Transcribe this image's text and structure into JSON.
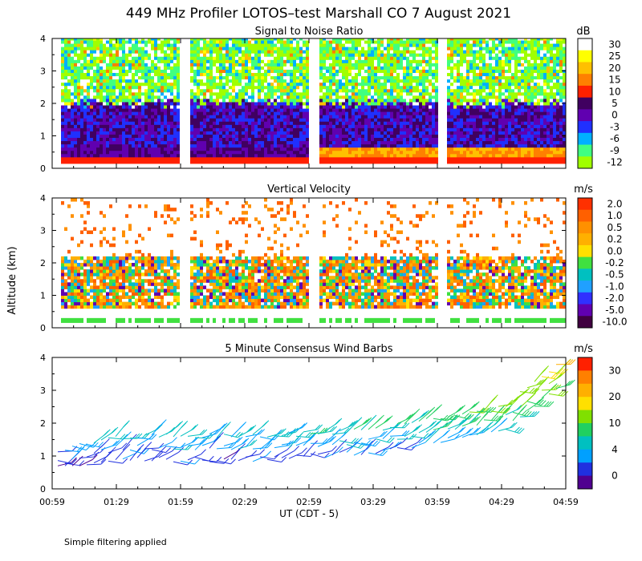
{
  "title": "449 MHz Profiler LOTOS–test Marshall CO  7 August 2021",
  "ylabel": "Altitude (km)",
  "xlabel": "UT  (CDT - 5)",
  "footnote": "Simple filtering applied",
  "x_ticks": [
    "00:59",
    "01:29",
    "01:59",
    "02:29",
    "02:59",
    "03:29",
    "03:59",
    "04:29",
    "04:59"
  ],
  "y_ticks": [
    "0",
    "1",
    "2",
    "3",
    "4"
  ],
  "chart_data": [
    {
      "type": "heatmap",
      "title": "Signal to Noise Ratio",
      "colorbar_unit": "dB",
      "colorbar_labels": [
        "30",
        "25",
        "20",
        "15",
        "10",
        "5",
        "0",
        "-3",
        "-6",
        "-9",
        "-12"
      ],
      "colorbar_colors": [
        "#ffffff",
        "#ffff00",
        "#ffc000",
        "#ff8000",
        "#ff2000",
        "#400060",
        "#6000b0",
        "#2030ff",
        "#00b0ff",
        "#40ff80",
        "#a0ff00"
      ],
      "ylim": [
        0,
        4
      ],
      "data_gaps_ut": [
        "02:05-02:10",
        "03:05-03:07",
        "03:50-03:54"
      ],
      "description_bands": [
        {
          "alt_km": [
            0.2,
            0.5
          ],
          "level_db": "10 to 20"
        },
        {
          "alt_km": [
            0.5,
            1.8
          ],
          "level_db": "0 to 5"
        },
        {
          "alt_km": [
            1.8,
            4.0
          ],
          "level_db": "-12 to 30"
        }
      ]
    },
    {
      "type": "heatmap",
      "title": "Vertical Velocity",
      "colorbar_unit": "m/s",
      "colorbar_labels": [
        "2.0",
        "1.0",
        "0.5",
        "0.2",
        "0.0",
        "-0.2",
        "-0.5",
        "-1.0",
        "-2.0",
        "-5.0",
        "-10.0"
      ],
      "colorbar_colors": [
        "#ff3000",
        "#ff6000",
        "#ff9000",
        "#ffb000",
        "#ffe000",
        "#40e040",
        "#00c0c0",
        "#20a0ff",
        "#3030ff",
        "#6000b0",
        "#400040"
      ],
      "ylim": [
        0,
        4
      ]
    },
    {
      "type": "wind_barbs",
      "title": "5 Minute Consensus Wind Barbs",
      "colorbar_unit": "m/s",
      "colorbar_labels": [
        "30",
        "20",
        "10",
        "4",
        "0"
      ],
      "colorbar_colors": [
        "#ff2000",
        "#ff8000",
        "#ffb000",
        "#ffe000",
        "#80e000",
        "#20d060",
        "#00c0c0",
        "#00a0ff",
        "#2030e0",
        "#500090"
      ],
      "ylim": [
        0,
        4
      ],
      "approx_speeds": [
        {
          "ut": "01:05",
          "alt_km": 0.9,
          "speed_ms": 5
        },
        {
          "ut": "01:30",
          "alt_km": 1.3,
          "speed_ms": 8
        },
        {
          "ut": "02:30",
          "alt_km": 1.3,
          "speed_ms": 8
        },
        {
          "ut": "03:30",
          "alt_km": 1.5,
          "speed_ms": 10
        },
        {
          "ut": "04:30",
          "alt_km": 2.2,
          "speed_ms": 14
        },
        {
          "ut": "04:55",
          "alt_km": 3.5,
          "speed_ms": 20
        }
      ]
    }
  ]
}
